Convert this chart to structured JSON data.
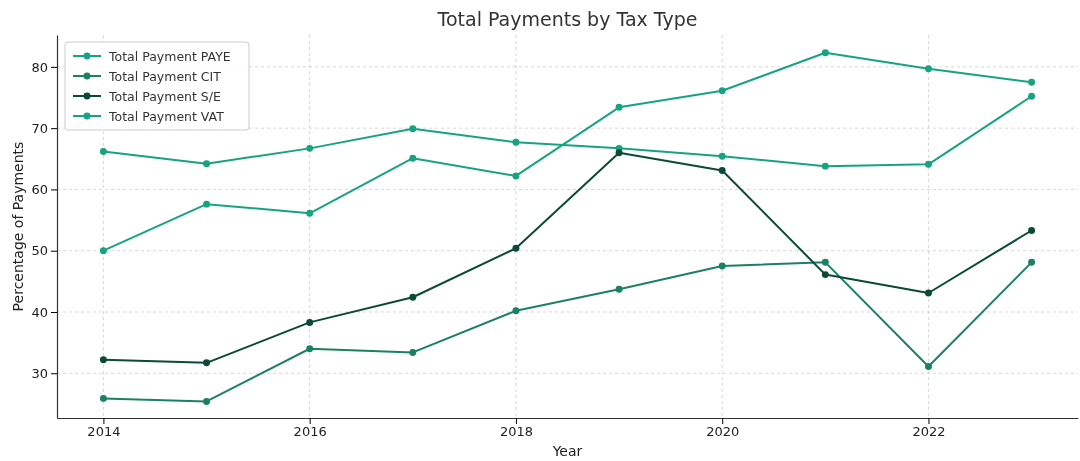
{
  "chart_data": {
    "type": "line",
    "title": "Total Payments by Tax Type",
    "xlabel": "Year",
    "ylabel": "Percentage of Payments",
    "x": [
      2014,
      2015,
      2016,
      2017,
      2018,
      2019,
      2020,
      2021,
      2022,
      2023
    ],
    "series": [
      {
        "name": "Total Payment PAYE",
        "color": "#17a382",
        "values": [
          66.2,
          64.2,
          66.7,
          69.9,
          67.7,
          66.7,
          65.4,
          63.8,
          64.1,
          75.2
        ]
      },
      {
        "name": "Total Payment CIT",
        "color": "#1b8064",
        "values": [
          25.9,
          25.4,
          34.0,
          33.4,
          40.2,
          43.7,
          47.5,
          48.1,
          31.1,
          48.1
        ]
      },
      {
        "name": "Total Payment S/E",
        "color": "#0b4a36",
        "values": [
          32.2,
          31.7,
          38.3,
          42.4,
          50.4,
          66.0,
          63.1,
          46.1,
          43.1,
          53.3
        ]
      },
      {
        "name": "Total Payment VAT",
        "color": "#17a382",
        "values": [
          50.0,
          57.6,
          56.1,
          65.1,
          62.2,
          73.4,
          76.1,
          82.3,
          79.7,
          77.5
        ]
      }
    ],
    "xlim": [
      2013.55,
      2023.45
    ],
    "xticks": [
      2014,
      2016,
      2018,
      2020,
      2022
    ],
    "ylim": [
      22.7,
      85.2
    ],
    "yticks": [
      30,
      40,
      50,
      60,
      70,
      80
    ],
    "grid": true,
    "legend": "top left",
    "marker": "circle",
    "line_style": "solid"
  }
}
